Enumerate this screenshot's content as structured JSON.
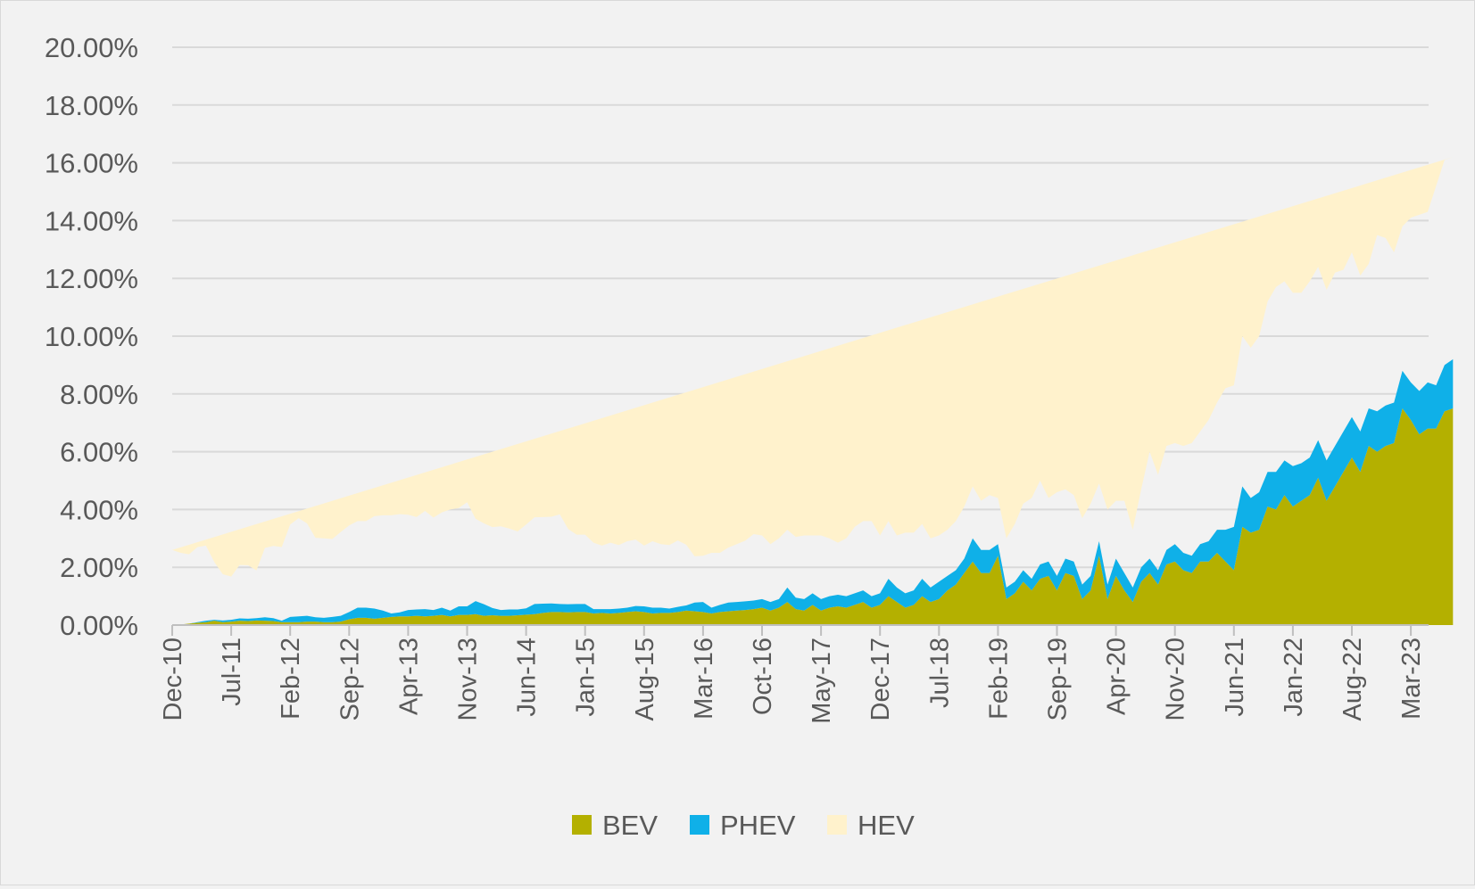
{
  "chart_data": {
    "type": "area",
    "stacked": true,
    "x_tick_labels": [
      "Dec-10",
      "Jul-11",
      "Feb-12",
      "Sep-12",
      "Apr-13",
      "Nov-13",
      "Jun-14",
      "Jan-15",
      "Aug-15",
      "Mar-16",
      "Oct-16",
      "May-17",
      "Dec-17",
      "Jul-18",
      "Feb-19",
      "Sep-19",
      "Apr-20",
      "Nov-20",
      "Jun-21",
      "Jan-22",
      "Aug-22",
      "Mar-23"
    ],
    "x_start": "2010-12",
    "y_ticks": [
      "0.00%",
      "2.00%",
      "4.00%",
      "6.00%",
      "8.00%",
      "10.00%",
      "12.00%",
      "14.00%",
      "16.00%",
      "18.00%",
      "20.00%"
    ],
    "ylim": [
      0,
      20
    ],
    "grid": "horizontal",
    "legend_position": "bottom",
    "colors": {
      "BEV": "#b4b000",
      "PHEV": "#0fb0e8",
      "HEV": "#fff2cc"
    },
    "series": [
      {
        "name": "BEV",
        "values": [
          0.0,
          0.02,
          0.05,
          0.08,
          0.1,
          0.15,
          0.1,
          0.12,
          0.15,
          0.14,
          0.16,
          0.15,
          0.14,
          0.1,
          0.1,
          0.1,
          0.12,
          0.12,
          0.1,
          0.1,
          0.12,
          0.2,
          0.25,
          0.25,
          0.22,
          0.25,
          0.28,
          0.3,
          0.3,
          0.32,
          0.3,
          0.32,
          0.35,
          0.3,
          0.35,
          0.35,
          0.38,
          0.32,
          0.34,
          0.32,
          0.32,
          0.34,
          0.36,
          0.38,
          0.42,
          0.45,
          0.45,
          0.44,
          0.45,
          0.45,
          0.4,
          0.42,
          0.4,
          0.42,
          0.45,
          0.48,
          0.45,
          0.4,
          0.42,
          0.42,
          0.45,
          0.5,
          0.48,
          0.45,
          0.4,
          0.45,
          0.48,
          0.5,
          0.52,
          0.55,
          0.6,
          0.5,
          0.6,
          0.8,
          0.55,
          0.5,
          0.7,
          0.5,
          0.6,
          0.65,
          0.6,
          0.7,
          0.8,
          0.6,
          0.7,
          1.0,
          0.8,
          0.6,
          0.7,
          1.0,
          0.8,
          0.9,
          1.2,
          1.4,
          1.8,
          2.2,
          1.8,
          1.8,
          2.4,
          0.9,
          1.1,
          1.5,
          1.2,
          1.6,
          1.7,
          1.2,
          1.8,
          1.7,
          0.9,
          1.2,
          2.4,
          0.9,
          1.7,
          1.2,
          0.8,
          1.5,
          1.8,
          1.4,
          2.1,
          2.2,
          1.9,
          1.8,
          2.2,
          2.2,
          2.5,
          2.2,
          1.9,
          3.4,
          3.2,
          3.3,
          4.1,
          4.0,
          4.5,
          4.1,
          4.3,
          4.5,
          5.1,
          4.3,
          4.8,
          5.3,
          5.8,
          5.3,
          6.2,
          6.0,
          6.2,
          6.3,
          7.5,
          7.1,
          6.6,
          6.8,
          6.8,
          7.4,
          7.5
        ]
      },
      {
        "name": "PHEV",
        "values": [
          0.0,
          0.0,
          0.0,
          0.02,
          0.05,
          0.03,
          0.06,
          0.06,
          0.08,
          0.08,
          0.08,
          0.12,
          0.1,
          0.05,
          0.18,
          0.2,
          0.2,
          0.15,
          0.15,
          0.18,
          0.2,
          0.25,
          0.35,
          0.35,
          0.35,
          0.25,
          0.12,
          0.14,
          0.22,
          0.22,
          0.25,
          0.2,
          0.25,
          0.2,
          0.3,
          0.3,
          0.45,
          0.4,
          0.25,
          0.2,
          0.22,
          0.2,
          0.22,
          0.35,
          0.32,
          0.3,
          0.28,
          0.28,
          0.28,
          0.28,
          0.15,
          0.13,
          0.15,
          0.15,
          0.15,
          0.18,
          0.2,
          0.2,
          0.18,
          0.15,
          0.18,
          0.18,
          0.3,
          0.35,
          0.2,
          0.25,
          0.3,
          0.3,
          0.3,
          0.3,
          0.3,
          0.3,
          0.3,
          0.5,
          0.4,
          0.4,
          0.4,
          0.4,
          0.4,
          0.4,
          0.4,
          0.4,
          0.4,
          0.4,
          0.4,
          0.6,
          0.5,
          0.5,
          0.5,
          0.6,
          0.5,
          0.6,
          0.5,
          0.5,
          0.5,
          0.8,
          0.8,
          0.8,
          0.4,
          0.4,
          0.4,
          0.4,
          0.4,
          0.5,
          0.5,
          0.5,
          0.5,
          0.5,
          0.5,
          0.5,
          0.5,
          0.5,
          0.6,
          0.6,
          0.5,
          0.5,
          0.5,
          0.5,
          0.5,
          0.6,
          0.6,
          0.6,
          0.6,
          0.7,
          0.8,
          1.1,
          1.5,
          1.4,
          1.2,
          1.3,
          1.2,
          1.3,
          1.2,
          1.4,
          1.3,
          1.3,
          1.3,
          1.4,
          1.4,
          1.4,
          1.4,
          1.4,
          1.3,
          1.4,
          1.4,
          1.4,
          1.3,
          1.3,
          1.5,
          1.6,
          1.5,
          1.6,
          1.7
        ]
      },
      {
        "name": "HEV",
        "values": [
          2.6,
          2.48,
          2.4,
          2.6,
          2.6,
          2.0,
          1.6,
          1.5,
          1.85,
          1.85,
          1.65,
          2.4,
          2.5,
          2.55,
          3.2,
          3.4,
          3.2,
          2.75,
          2.75,
          2.7,
          2.9,
          3.0,
          3.0,
          3.0,
          3.2,
          3.3,
          3.4,
          3.4,
          3.3,
          3.2,
          3.4,
          3.2,
          3.3,
          3.5,
          3.4,
          3.6,
          2.85,
          2.8,
          2.8,
          2.9,
          2.8,
          2.7,
          2.9,
          3.0,
          3.0,
          3.0,
          3.1,
          2.6,
          2.4,
          2.4,
          2.3,
          2.2,
          2.3,
          2.2,
          2.3,
          2.3,
          2.1,
          2.3,
          2.2,
          2.2,
          2.3,
          2.1,
          1.6,
          1.6,
          1.9,
          1.8,
          1.9,
          2.0,
          2.1,
          2.3,
          2.2,
          2.0,
          2.1,
          2.0,
          2.1,
          2.2,
          2.0,
          2.2,
          2.0,
          1.8,
          2.0,
          2.3,
          2.4,
          2.6,
          2.0,
          2.0,
          1.8,
          2.1,
          2.0,
          1.9,
          1.7,
          1.6,
          1.6,
          1.7,
          1.8,
          1.8,
          1.7,
          1.9,
          1.6,
          1.7,
          2.0,
          2.3,
          2.8,
          2.9,
          2.2,
          2.9,
          2.4,
          2.3,
          2.3,
          2.5,
          2.0,
          2.6,
          2.0,
          2.5,
          2.0,
          2.7,
          3.7,
          3.3,
          3.6,
          3.5,
          3.7,
          3.9,
          3.9,
          4.2,
          4.4,
          4.9,
          4.9,
          5.2,
          5.2,
          5.4,
          5.9,
          6.4,
          6.2,
          6.0,
          5.9,
          6.1,
          6.0,
          5.9,
          6.0,
          5.6,
          5.7,
          5.4,
          5.0,
          6.1,
          5.8,
          5.2,
          5.0,
          5.7,
          6.1,
          5.9,
          6.9,
          7.1,
          7.0,
          7.6,
          8.0
        ]
      }
    ]
  }
}
